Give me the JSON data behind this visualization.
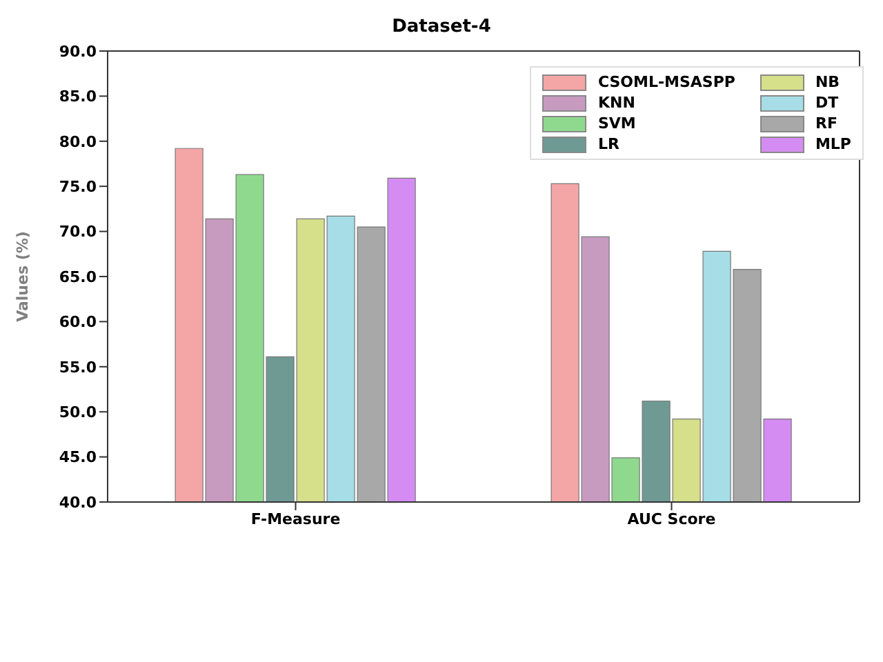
{
  "chart_data": {
    "type": "bar",
    "title": "Dataset-4",
    "ylabel": "Values (%)",
    "categories": [
      "F-Measure",
      "AUC Score"
    ],
    "series": [
      {
        "name": "CSOML-MSASPP",
        "color": "#f4a6a6",
        "values": [
          79.2,
          75.3
        ]
      },
      {
        "name": "KNN",
        "color": "#c79bc0",
        "values": [
          71.4,
          69.4
        ]
      },
      {
        "name": "SVM",
        "color": "#8fd98f",
        "values": [
          76.3,
          44.9
        ]
      },
      {
        "name": "LR",
        "color": "#6f9a94",
        "values": [
          56.1,
          51.2
        ]
      },
      {
        "name": "NB",
        "color": "#d6df8a",
        "values": [
          71.4,
          49.2
        ]
      },
      {
        "name": "DT",
        "color": "#a6dde6",
        "values": [
          71.7,
          67.8
        ]
      },
      {
        "name": "RF",
        "color": "#a8a8a8",
        "values": [
          70.5,
          65.8
        ]
      },
      {
        "name": "MLP",
        "color": "#d58cf2",
        "values": [
          75.9,
          49.2
        ]
      }
    ],
    "ylim": [
      40,
      90
    ],
    "yticks": [
      {
        "value": 40,
        "label": "40.0"
      },
      {
        "value": 45,
        "label": "45.0"
      },
      {
        "value": 50,
        "label": "50.0"
      },
      {
        "value": 55,
        "label": "55.0"
      },
      {
        "value": 60,
        "label": "60.0"
      },
      {
        "value": 65,
        "label": "65.0"
      },
      {
        "value": 70,
        "label": "70.0"
      },
      {
        "value": 75,
        "label": "75.0"
      },
      {
        "value": 80,
        "label": "80.0"
      },
      {
        "value": 85,
        "label": "85.0"
      },
      {
        "value": 90,
        "label": "90.0"
      }
    ],
    "legend": "top right"
  }
}
